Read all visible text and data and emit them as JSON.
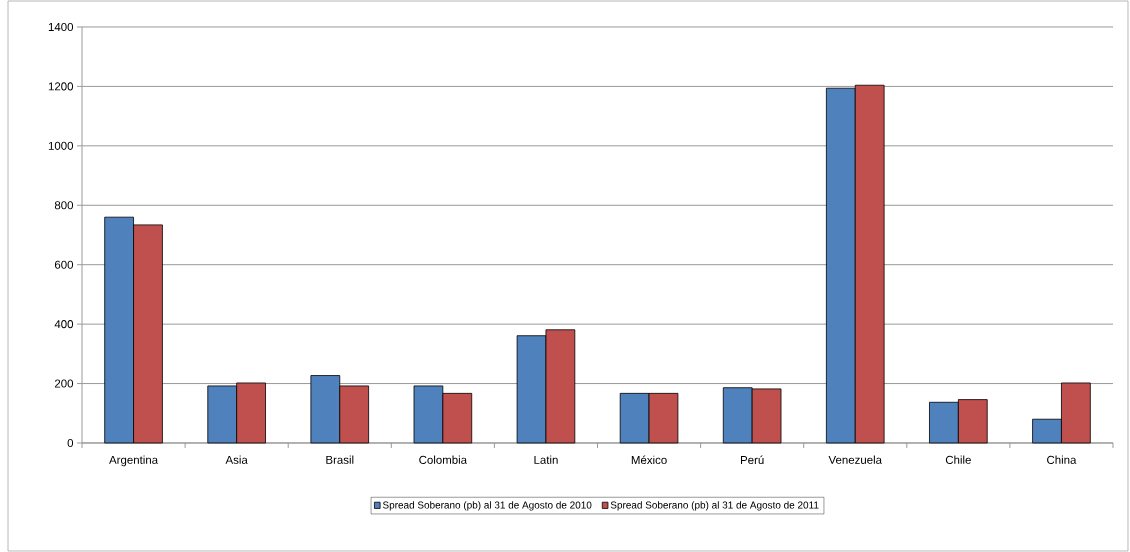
{
  "chart_data": {
    "type": "bar",
    "categories": [
      "Argentina",
      "Asia",
      "Brasil",
      "Colombia",
      "Latin",
      "México",
      "Perú",
      "Venezuela",
      "Chile",
      "China"
    ],
    "series": [
      {
        "name": "Spread Soberano (pb) al 31 de Agosto de 2010",
        "color": "#4f81bd",
        "values": [
          760,
          192,
          227,
          192,
          361,
          167,
          186,
          1194,
          137,
          80
        ]
      },
      {
        "name": "Spread Soberano (pb) al 31 de Agosto de 2011",
        "color": "#c0504d",
        "values": [
          734,
          202,
          192,
          167,
          381,
          167,
          182,
          1204,
          146,
          202
        ]
      }
    ],
    "ylim": [
      0,
      1400
    ],
    "yticks": [
      0,
      200,
      400,
      600,
      800,
      1000,
      1200,
      1400
    ],
    "grid": "y",
    "legend": "bottom"
  }
}
